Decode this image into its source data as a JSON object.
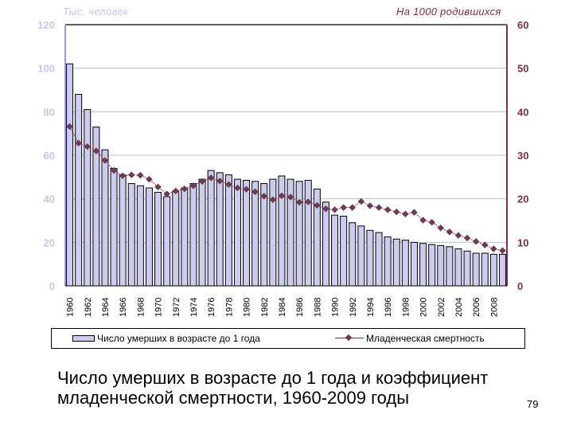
{
  "page": {
    "caption_line1": "Число умерших в возрасте до 1 года и коэффициент",
    "caption_line2": "младенческой смертности, 1960-2009 годы",
    "page_number": "79"
  },
  "chart_data": {
    "type": "bar+line",
    "title": "Число умерших в возрасте до 1 года и коэффициент младенческой смертности, 1960-2009 годы",
    "left_axis": {
      "label": "Тыс. человек",
      "ticks": [
        0,
        20,
        40,
        60,
        80,
        100,
        120
      ],
      "range": [
        0,
        120
      ],
      "color": "#c7c7e6"
    },
    "right_axis": {
      "label": "На 1000 родившихся",
      "ticks": [
        0,
        10,
        20,
        30,
        40,
        50,
        60
      ],
      "range": [
        0,
        60
      ],
      "color": "#7a2e4a"
    },
    "x_tick_labels": [
      "1960",
      "1962",
      "1964",
      "1966",
      "1968",
      "1970",
      "1972",
      "1974",
      "1976",
      "1978",
      "1980",
      "1982",
      "1984",
      "1986",
      "1988",
      "1990",
      "1992",
      "1994",
      "1996",
      "1998",
      "2000",
      "2002",
      "2004",
      "2006",
      "2008"
    ],
    "categories": [
      1960,
      1961,
      1962,
      1963,
      1964,
      1965,
      1966,
      1967,
      1968,
      1969,
      1970,
      1971,
      1972,
      1973,
      1974,
      1975,
      1976,
      1977,
      1978,
      1979,
      1980,
      1981,
      1982,
      1983,
      1984,
      1985,
      1986,
      1987,
      1988,
      1989,
      1990,
      1991,
      1992,
      1993,
      1994,
      1995,
      1996,
      1997,
      1998,
      1999,
      2000,
      2001,
      2002,
      2003,
      2004,
      2005,
      2006,
      2007,
      2008,
      2009
    ],
    "series": [
      {
        "name": "Число умерших в возрасте до 1 года",
        "type": "bar",
        "axis": "left",
        "color": "#ccccf0",
        "values": [
          102,
          88,
          81,
          73,
          62.5,
          54,
          51,
          47,
          46,
          45,
          43,
          41,
          43.5,
          45,
          47,
          49,
          53,
          52,
          51,
          49,
          48.5,
          48,
          47,
          49,
          50.5,
          49,
          48,
          48.5,
          44.5,
          38.5,
          32.5,
          32,
          29,
          27.5,
          25.5,
          24.5,
          22.5,
          21.5,
          21,
          20,
          19.5,
          19,
          18.5,
          18,
          17,
          16,
          15,
          15,
          14.5,
          14.5
        ]
      },
      {
        "name": "Младенческая смертность",
        "type": "line",
        "axis": "right",
        "color": "#6b3a55",
        "values": [
          36.6,
          32.8,
          32,
          31,
          28.8,
          26.5,
          25.3,
          25.5,
          25.4,
          24.5,
          22.7,
          21.1,
          21.8,
          22.3,
          23,
          24,
          24.8,
          24.1,
          23.3,
          22.5,
          22.2,
          21.6,
          20.6,
          19.8,
          20.7,
          20.4,
          19.2,
          19.3,
          18.5,
          17.7,
          17.5,
          18,
          18,
          19.4,
          18.4,
          18,
          17.5,
          17,
          16.5,
          16.9,
          15.1,
          14.6,
          13.3,
          12.4,
          11.6,
          11,
          10.2,
          9.4,
          8.5,
          8.1
        ]
      }
    ],
    "legend": {
      "position": "bottom",
      "bar_label": "Число умерших в возрасте до 1 года",
      "line_label": "Младенческая смертность"
    },
    "grid": true
  }
}
